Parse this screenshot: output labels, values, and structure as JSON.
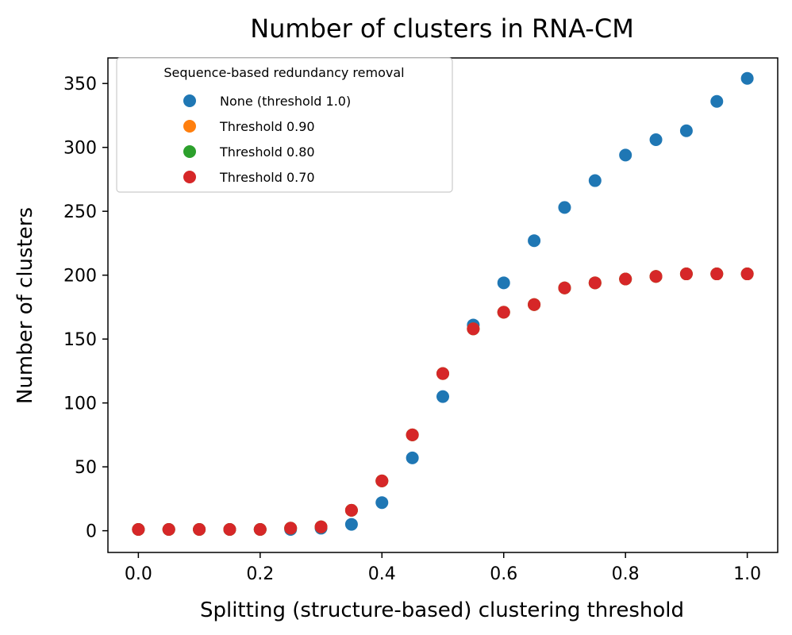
{
  "chart_data": {
    "type": "scatter",
    "title": "Number of clusters in RNA-CM",
    "xlabel": "Splitting (structure-based) clustering threshold",
    "ylabel": "Number of clusters",
    "xlim": [
      -0.05,
      1.05
    ],
    "ylim": [
      -17,
      370
    ],
    "xticks": [
      0.0,
      0.2,
      0.4,
      0.6,
      0.8,
      1.0
    ],
    "xtick_labels": [
      "0.0",
      "0.2",
      "0.4",
      "0.6",
      "0.8",
      "1.0"
    ],
    "yticks": [
      0,
      50,
      100,
      150,
      200,
      250,
      300,
      350
    ],
    "ytick_labels": [
      "0",
      "50",
      "100",
      "150",
      "200",
      "250",
      "300",
      "350"
    ],
    "grid": false,
    "legend": {
      "title": "Sequence-based redundancy removal",
      "position": "top-left"
    },
    "x": [
      0.0,
      0.05,
      0.1,
      0.15,
      0.2,
      0.25,
      0.3,
      0.35,
      0.4,
      0.45,
      0.5,
      0.55,
      0.6,
      0.65,
      0.7,
      0.75,
      0.8,
      0.85,
      0.9,
      0.95,
      1.0
    ],
    "series": [
      {
        "name": "None (threshold 1.0)",
        "color": "#1f77b4",
        "values": [
          1,
          1,
          1,
          1,
          1,
          1,
          2,
          5,
          22,
          57,
          105,
          161,
          194,
          227,
          253,
          274,
          294,
          306,
          313,
          336,
          354
        ]
      },
      {
        "name": "Threshold 0.90",
        "color": "#ff7f0e",
        "values": [
          1,
          1,
          1,
          1,
          1,
          2,
          3,
          16,
          39,
          75,
          123,
          158,
          171,
          177,
          190,
          194,
          197,
          199,
          201,
          201,
          201
        ]
      },
      {
        "name": "Threshold 0.80",
        "color": "#2ca02c",
        "values": [
          1,
          1,
          1,
          1,
          1,
          2,
          3,
          16,
          39,
          75,
          123,
          158,
          171,
          177,
          190,
          194,
          197,
          199,
          201,
          201,
          201
        ]
      },
      {
        "name": "Threshold 0.70",
        "color": "#d62728",
        "values": [
          1,
          1,
          1,
          1,
          1,
          2,
          3,
          16,
          39,
          75,
          123,
          158,
          171,
          177,
          190,
          194,
          197,
          199,
          201,
          201,
          201
        ]
      }
    ]
  }
}
